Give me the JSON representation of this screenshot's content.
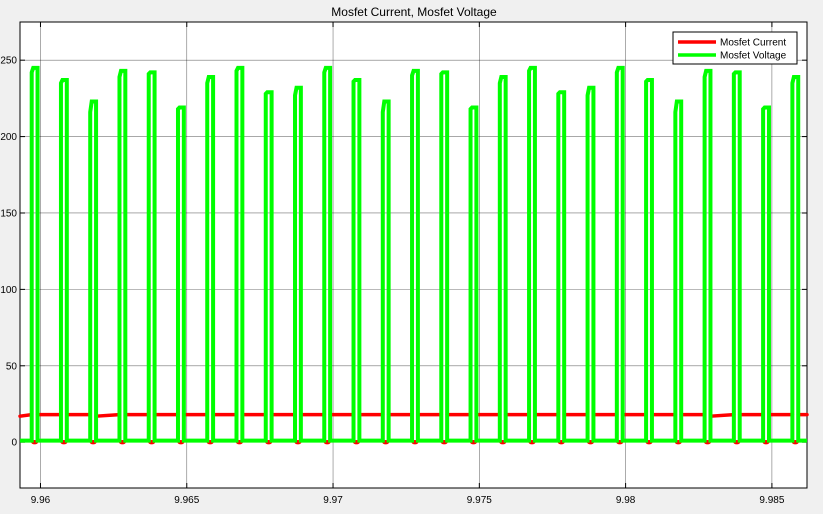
{
  "chart_data": {
    "type": "line",
    "title": "Mosfet Current, Mosfet Voltage",
    "xlabel": "",
    "ylabel": "",
    "xlim": [
      9.9593,
      9.9862
    ],
    "ylim": [
      -30,
      275
    ],
    "x_ticks": [
      9.96,
      9.965,
      9.97,
      9.975,
      9.98,
      9.985
    ],
    "x_tick_labels": [
      "9.96",
      "9.965",
      "9.97",
      "9.975",
      "9.98",
      "9.985"
    ],
    "y_ticks": [
      0,
      50,
      100,
      150,
      200,
      250
    ],
    "y_tick_labels": [
      "0",
      "50",
      "100",
      "150",
      "200",
      "250"
    ],
    "grid": true,
    "legend_position": "top-right",
    "series": [
      {
        "name": "Mosfet Current",
        "color": "#ff0000",
        "current_start": [
          17,
          18,
          18,
          17,
          18,
          18,
          18,
          18,
          18,
          18,
          18,
          18,
          18,
          18,
          18,
          18,
          18,
          18,
          18,
          18,
          18,
          18,
          18,
          18,
          17,
          18,
          18,
          18
        ],
        "current_end": [
          18,
          18,
          18,
          18,
          18,
          18,
          18,
          18,
          18,
          18,
          18,
          18,
          18,
          18,
          18,
          18,
          18,
          18,
          18,
          18,
          18,
          18,
          18,
          18,
          18,
          18,
          18,
          18
        ],
        "marker_value": 0
      },
      {
        "name": "Mosfet Voltage",
        "color": "#00ff00",
        "pulse_starts": [
          9.9597,
          9.9607,
          9.9617,
          9.9627,
          9.9637,
          9.9647,
          9.9657,
          9.9667,
          9.9677,
          9.9687,
          9.9697,
          9.9707,
          9.9717,
          9.9727,
          9.9737,
          9.9747,
          9.9757,
          9.9767,
          9.9777,
          9.9787,
          9.9797,
          9.9807,
          9.9817,
          9.9827,
          9.9837,
          9.9847,
          9.9857
        ],
        "pulse_width": 0.0002,
        "pulse_rise": [
          242,
          235,
          216,
          239,
          241,
          218,
          235,
          243,
          228,
          227,
          242,
          236,
          216,
          240,
          241,
          218,
          235,
          243,
          228,
          227,
          242,
          236,
          216,
          239,
          241,
          218,
          235
        ],
        "pulse_peak": [
          245,
          237,
          223,
          243,
          242,
          219,
          239,
          245,
          229,
          232,
          245,
          237,
          223,
          243,
          242,
          219,
          239,
          245,
          229,
          232,
          245,
          237,
          223,
          243,
          242,
          219,
          239
        ],
        "off_value": 1
      }
    ]
  }
}
